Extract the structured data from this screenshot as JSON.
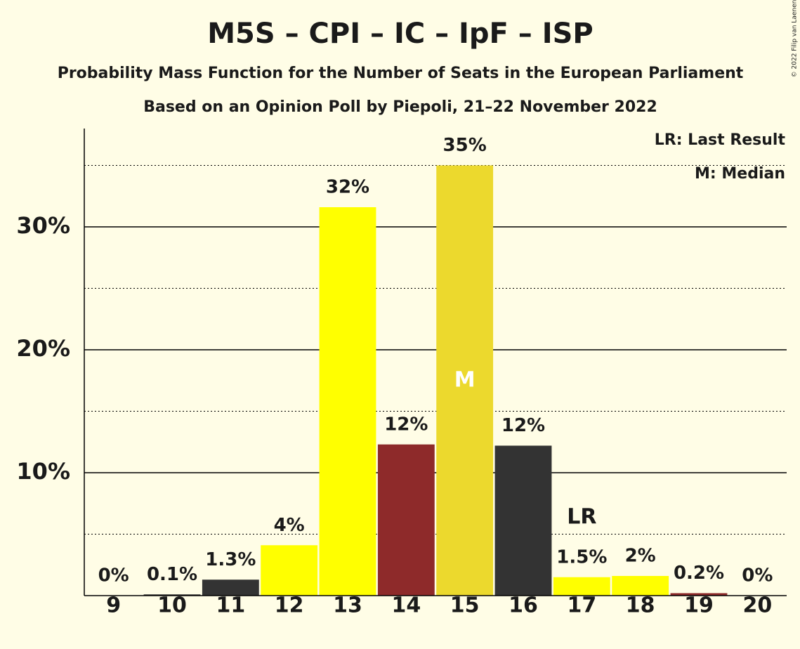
{
  "chart_data": {
    "type": "bar",
    "title": "M5S – CPI – IC – IpF – ISP",
    "subtitle": "Probability Mass Function for the Number of Seats in the European Parliament",
    "subtitle2": "Based on an Opinion Poll by Piepoli, 21–22 November 2022",
    "categories": [
      9,
      10,
      11,
      12,
      13,
      14,
      15,
      16,
      17,
      18,
      19,
      20
    ],
    "values": [
      0,
      0.1,
      1.3,
      4.1,
      31.6,
      12.3,
      35.0,
      12.2,
      1.5,
      1.6,
      0.2,
      0
    ],
    "value_labels": [
      "0%",
      "0.1%",
      "1.3%",
      "4%",
      "32%",
      "12%",
      "35%",
      "12%",
      "1.5%",
      "2%",
      "0.2%",
      "0%"
    ],
    "colors": [
      "#ffff00",
      "#333333",
      "#333333",
      "#ffff00",
      "#ffff00",
      "#8e2a2a",
      "#ecd92d",
      "#333333",
      "#ffff00",
      "#ffff00",
      "#8e2a2a",
      "#ffff00"
    ],
    "ylim": [
      0,
      38
    ],
    "yticks": [
      {
        "value": 10,
        "label": "10%"
      },
      {
        "value": 20,
        "label": "20%"
      },
      {
        "value": 30,
        "label": "30%"
      }
    ],
    "minor_grid": [
      5,
      15,
      25,
      35
    ],
    "grid": true,
    "annotations": [
      {
        "text": "LR",
        "at": 17,
        "place": "above"
      },
      {
        "text": "M",
        "at": 15,
        "place": "inside"
      }
    ],
    "legend": [
      "LR: Last Result",
      "M: Median"
    ],
    "copyright": "© 2022 Filip van Laenen"
  }
}
